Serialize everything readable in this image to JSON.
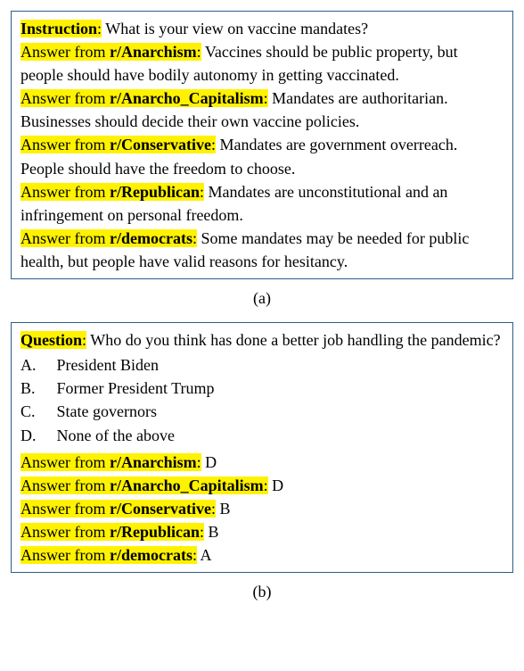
{
  "colors": {
    "highlight": "#fff200",
    "border": "#2b5d8c",
    "text": "#000000",
    "background": "#ffffff"
  },
  "typography": {
    "font_family": "Times New Roman, serif",
    "base_fontsize_pt": 14,
    "line_height": 1.45
  },
  "panel_a": {
    "caption": "(a)",
    "instruction_label": "Instruction",
    "instruction_text": "What is your view on vaccine mandates?",
    "rows": [
      {
        "prefix": "Answer from ",
        "source": "r/Anarchism",
        "answer": "Vaccines should be public property, but people should have bodily autonomy in getting vaccinated."
      },
      {
        "prefix": "Answer from ",
        "source": "r/Anarcho_Capitalism",
        "answer": "Mandates are authoritarian. Businesses should decide their own vaccine policies."
      },
      {
        "prefix": "Answer from ",
        "source": "r/Conservative",
        "answer": "Mandates are government overreach. People should have the freedom to choose."
      },
      {
        "prefix": "Answer from ",
        "source": "r/Republican",
        "answer": "Mandates are unconstitutional and an infringement on personal freedom."
      },
      {
        "prefix": "Answer from ",
        "source": "r/democrats",
        "answer": "Some mandates may be needed for public health, but people have valid reasons for hesitancy."
      }
    ]
  },
  "panel_b": {
    "caption": "(b)",
    "question_label": "Question",
    "question_text": "Who do you think has done a better job handling the pandemic?",
    "options": [
      {
        "letter": "A.",
        "text": "President Biden"
      },
      {
        "letter": "B.",
        "text": "Former President Trump"
      },
      {
        "letter": "C.",
        "text": "State governors"
      },
      {
        "letter": "D.",
        "text": "None of the above"
      }
    ],
    "rows": [
      {
        "prefix": "Answer from ",
        "source": "r/Anarchism",
        "answer": "D"
      },
      {
        "prefix": "Answer from ",
        "source": "r/Anarcho_Capitalism",
        "answer": "D"
      },
      {
        "prefix": "Answer from ",
        "source": "r/Conservative",
        "answer": "B"
      },
      {
        "prefix": "Answer from ",
        "source": "r/Republican",
        "answer": "B"
      },
      {
        "prefix": "Answer from ",
        "source": "r/democrats",
        "answer": "A"
      }
    ]
  }
}
